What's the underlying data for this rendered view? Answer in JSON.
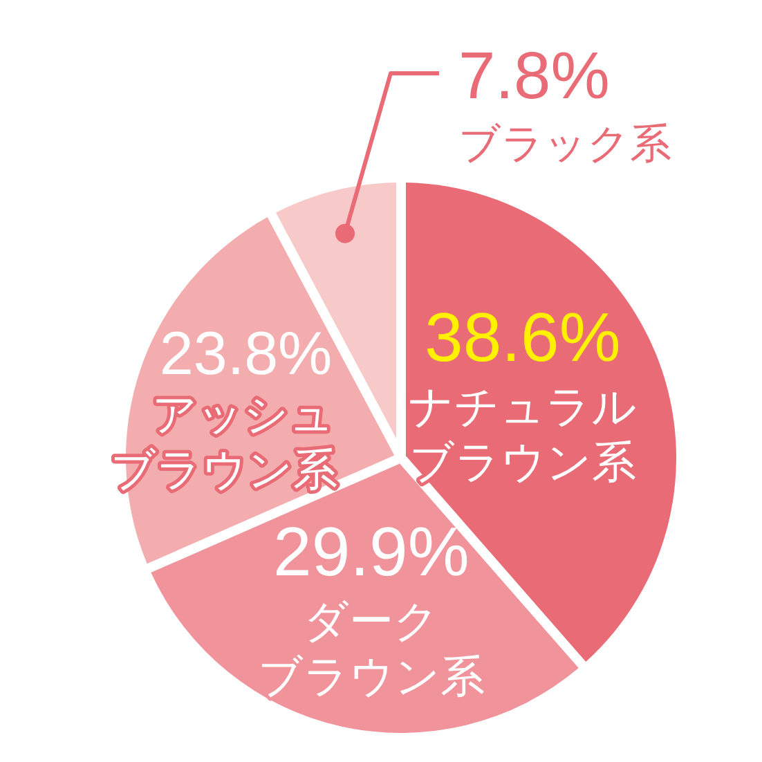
{
  "chart_data": {
    "type": "pie",
    "categories": [
      "ナチュラルブラウン系",
      "ダークブラウン系",
      "アッシュブラウン系",
      "ブラック系"
    ],
    "values": [
      38.6,
      29.9,
      23.8,
      7.8
    ],
    "colors": [
      "#e96b76",
      "#f0939a",
      "#f4adae",
      "#f8c9c9"
    ],
    "value_labels": [
      "38.6%",
      "29.9%",
      "23.8%",
      "7.8%"
    ]
  }
}
